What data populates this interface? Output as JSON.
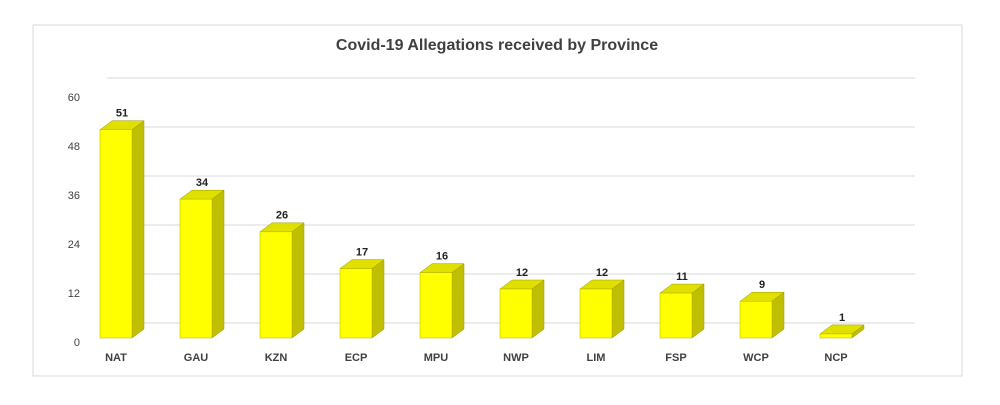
{
  "chart_data": {
    "type": "bar",
    "title": "Covid-19 Allegations received by Province",
    "categories": [
      "NAT",
      "GAU",
      "KZN",
      "ECP",
      "MPU",
      "NWP",
      "LIM",
      "FSP",
      "WCP",
      "NCP"
    ],
    "values": [
      51,
      34,
      26,
      17,
      16,
      12,
      12,
      11,
      9,
      1
    ],
    "color": "#ffff00",
    "ylim": [
      0,
      60
    ],
    "yticks": [
      0,
      12,
      24,
      36,
      48,
      60
    ],
    "grid": true
  }
}
